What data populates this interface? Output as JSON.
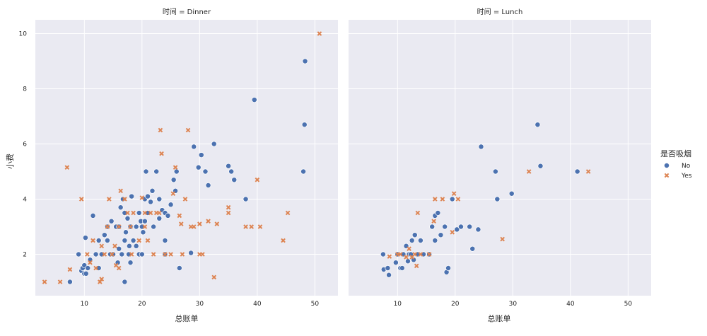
{
  "chart_data": {
    "type": "scatter",
    "facet_variable": "时间",
    "facets": [
      {
        "title": "时间 = Dinner",
        "series": [
          {
            "name": "No",
            "points": [
              [
                7.5,
                1.0
              ],
              [
                9.0,
                2.0
              ],
              [
                9.5,
                1.4
              ],
              [
                9.7,
                1.5
              ],
              [
                10.0,
                1.3
              ],
              [
                10.0,
                1.6
              ],
              [
                10.2,
                2.6
              ],
              [
                10.3,
                1.3
              ],
              [
                10.6,
                1.5
              ],
              [
                11.0,
                1.8
              ],
              [
                11.5,
                3.4
              ],
              [
                12.0,
                2.0
              ],
              [
                12.5,
                1.5
              ],
              [
                12.5,
                2.5
              ],
              [
                13.0,
                2.0
              ],
              [
                13.5,
                2.7
              ],
              [
                14.0,
                3.0
              ],
              [
                14.0,
                2.5
              ],
              [
                14.5,
                2.0
              ],
              [
                14.7,
                3.2
              ],
              [
                15.0,
                2.0
              ],
              [
                15.5,
                3.0
              ],
              [
                15.8,
                1.7
              ],
              [
                16.0,
                2.2
              ],
              [
                16.0,
                3.0
              ],
              [
                16.3,
                3.7
              ],
              [
                16.5,
                2.0
              ],
              [
                16.7,
                4.0
              ],
              [
                17.0,
                1.0
              ],
              [
                17.0,
                2.5
              ],
              [
                17.0,
                3.5
              ],
              [
                17.2,
                2.8
              ],
              [
                17.5,
                3.3
              ],
              [
                17.7,
                2.0
              ],
              [
                17.8,
                2.3
              ],
              [
                18.0,
                1.7
              ],
              [
                18.0,
                3.0
              ],
              [
                18.2,
                4.1
              ],
              [
                18.5,
                2.5
              ],
              [
                19.0,
                2.3
              ],
              [
                19.0,
                3.0
              ],
              [
                19.5,
                2.0
              ],
              [
                19.5,
                3.5
              ],
              [
                19.8,
                3.2
              ],
              [
                20.0,
                2.0
              ],
              [
                20.0,
                3.0
              ],
              [
                20.2,
                2.8
              ],
              [
                20.5,
                3.2
              ],
              [
                20.5,
                4.0
              ],
              [
                20.7,
                5.0
              ],
              [
                21.0,
                3.5
              ],
              [
                21.0,
                4.1
              ],
              [
                21.5,
                3.9
              ],
              [
                21.8,
                4.3
              ],
              [
                22.0,
                3.0
              ],
              [
                22.5,
                5.0
              ],
              [
                23.0,
                3.3
              ],
              [
                23.0,
                4.0
              ],
              [
                23.5,
                3.6
              ],
              [
                24.0,
                2.0
              ],
              [
                24.0,
                2.5
              ],
              [
                24.0,
                3.5
              ],
              [
                24.5,
                3.4
              ],
              [
                25.0,
                3.8
              ],
              [
                25.5,
                4.7
              ],
              [
                25.8,
                4.3
              ],
              [
                26.0,
                5.0
              ],
              [
                26.5,
                1.5
              ],
              [
                28.5,
                2.05
              ],
              [
                29.0,
                5.9
              ],
              [
                29.8,
                5.15
              ],
              [
                30.3,
                5.6
              ],
              [
                31.0,
                5.0
              ],
              [
                31.5,
                4.5
              ],
              [
                32.5,
                6.0
              ],
              [
                35.0,
                5.2
              ],
              [
                35.5,
                5.0
              ],
              [
                36.0,
                4.7
              ],
              [
                38.0,
                4.0
              ],
              [
                39.5,
                7.6
              ],
              [
                48.0,
                5.0
              ],
              [
                48.2,
                6.7
              ],
              [
                48.3,
                9.0
              ]
            ]
          },
          {
            "name": "Yes",
            "points": [
              [
                3.1,
                1.0
              ],
              [
                5.8,
                1.0
              ],
              [
                7.0,
                5.15
              ],
              [
                7.5,
                1.45
              ],
              [
                9.5,
                4.0
              ],
              [
                10.5,
                2.0
              ],
              [
                11.0,
                1.7
              ],
              [
                11.5,
                2.5
              ],
              [
                12.0,
                1.5
              ],
              [
                12.7,
                1.0
              ],
              [
                13.0,
                1.1
              ],
              [
                13.0,
                2.3
              ],
              [
                13.5,
                2.0
              ],
              [
                14.0,
                3.0
              ],
              [
                14.3,
                4.0
              ],
              [
                14.8,
                2.0
              ],
              [
                15.3,
                2.3
              ],
              [
                15.5,
                1.6
              ],
              [
                16.0,
                1.5
              ],
              [
                16.0,
                3.0
              ],
              [
                16.3,
                4.3
              ],
              [
                17.0,
                4.0
              ],
              [
                17.5,
                3.5
              ],
              [
                18.0,
                3.0
              ],
              [
                18.2,
                2.0
              ],
              [
                18.5,
                3.5
              ],
              [
                19.5,
                2.5
              ],
              [
                20.0,
                4.05
              ],
              [
                20.5,
                3.0
              ],
              [
                20.5,
                3.5
              ],
              [
                21.0,
                2.5
              ],
              [
                21.5,
                3.5
              ],
              [
                22.0,
                2.0
              ],
              [
                22.5,
                3.5
              ],
              [
                23.0,
                3.5
              ],
              [
                23.2,
                6.5
              ],
              [
                23.4,
                5.65
              ],
              [
                24.0,
                2.0
              ],
              [
                25.0,
                2.0
              ],
              [
                25.4,
                4.2
              ],
              [
                25.8,
                5.15
              ],
              [
                26.5,
                3.4
              ],
              [
                26.8,
                3.1
              ],
              [
                27.0,
                2.0
              ],
              [
                27.5,
                4.0
              ],
              [
                28.0,
                6.5
              ],
              [
                28.5,
                3.0
              ],
              [
                29.0,
                3.0
              ],
              [
                30.0,
                3.1
              ],
              [
                30.0,
                2.0
              ],
              [
                30.5,
                2.0
              ],
              [
                31.5,
                3.2
              ],
              [
                32.5,
                1.17
              ],
              [
                33.0,
                3.1
              ],
              [
                35.0,
                3.5
              ],
              [
                35.0,
                3.7
              ],
              [
                38.0,
                3.0
              ],
              [
                39.0,
                3.0
              ],
              [
                40.0,
                4.7
              ],
              [
                40.5,
                3.0
              ],
              [
                44.5,
                2.5
              ],
              [
                45.3,
                3.5
              ],
              [
                50.8,
                10.0
              ]
            ]
          }
        ]
      },
      {
        "title": "时间 = Lunch",
        "series": [
          {
            "name": "No",
            "points": [
              [
                7.5,
                2.0
              ],
              [
                7.6,
                1.45
              ],
              [
                8.3,
                1.5
              ],
              [
                8.5,
                1.25
              ],
              [
                9.7,
                1.7
              ],
              [
                10.0,
                2.0
              ],
              [
                10.5,
                1.5
              ],
              [
                10.8,
                1.5
              ],
              [
                11.0,
                2.0
              ],
              [
                11.5,
                2.3
              ],
              [
                11.8,
                1.75
              ],
              [
                12.0,
                2.0
              ],
              [
                12.3,
                2.0
              ],
              [
                12.5,
                2.5
              ],
              [
                12.8,
                1.8
              ],
              [
                13.0,
                2.7
              ],
              [
                13.5,
                2.0
              ],
              [
                14.0,
                2.5
              ],
              [
                14.5,
                2.0
              ],
              [
                15.5,
                2.0
              ],
              [
                16.0,
                3.0
              ],
              [
                16.5,
                2.5
              ],
              [
                16.5,
                3.4
              ],
              [
                17.0,
                3.5
              ],
              [
                17.5,
                2.7
              ],
              [
                18.2,
                3.0
              ],
              [
                18.5,
                1.35
              ],
              [
                18.8,
                1.5
              ],
              [
                19.5,
                4.0
              ],
              [
                20.3,
                2.9
              ],
              [
                21.0,
                3.0
              ],
              [
                22.5,
                3.0
              ],
              [
                23.0,
                2.2
              ],
              [
                24.0,
                2.9
              ],
              [
                24.5,
                5.9
              ],
              [
                27.0,
                5.0
              ],
              [
                27.3,
                4.0
              ],
              [
                29.8,
                4.2
              ],
              [
                34.3,
                6.7
              ],
              [
                34.8,
                5.2
              ],
              [
                41.2,
                5.0
              ]
            ]
          },
          {
            "name": "Yes",
            "points": [
              [
                8.6,
                1.92
              ],
              [
                10.0,
                2.0
              ],
              [
                10.5,
                2.0
              ],
              [
                11.5,
                1.9
              ],
              [
                12.0,
                2.2
              ],
              [
                12.5,
                1.9
              ],
              [
                13.0,
                2.0
              ],
              [
                13.3,
                1.58
              ],
              [
                13.5,
                3.5
              ],
              [
                14.0,
                2.0
              ],
              [
                15.5,
                2.0
              ],
              [
                16.3,
                3.2
              ],
              [
                16.5,
                4.0
              ],
              [
                17.8,
                4.0
              ],
              [
                19.5,
                2.8
              ],
              [
                19.8,
                4.2
              ],
              [
                20.5,
                4.0
              ],
              [
                28.2,
                2.55
              ],
              [
                32.8,
                5.0
              ],
              [
                43.1,
                5.0
              ]
            ]
          }
        ]
      }
    ],
    "xlabel": "总账单",
    "ylabel": "小费",
    "xlim": [
      1.5,
      54
    ],
    "ylim": [
      0.5,
      10.5
    ],
    "xticks": [
      10,
      20,
      30,
      40,
      50
    ],
    "yticks": [
      2,
      4,
      6,
      8,
      10
    ],
    "grid": true,
    "legend": {
      "title": "是否吸烟",
      "placement": "right",
      "entries": [
        {
          "label": "No",
          "marker": "circle",
          "color": "#4c72b0"
        },
        {
          "label": "Yes",
          "marker": "x",
          "color": "#dd8452"
        }
      ]
    },
    "colors": {
      "panel_background": "#eaeaf2",
      "grid": "#ffffff",
      "No": "#4c72b0",
      "Yes": "#dd8452"
    }
  }
}
